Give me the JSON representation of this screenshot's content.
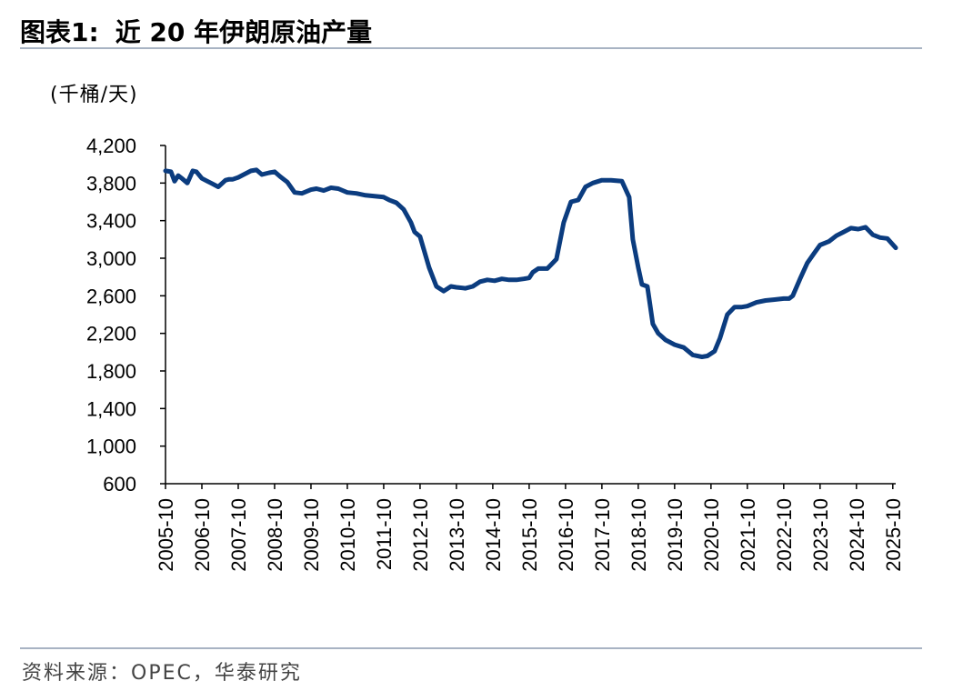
{
  "header": {
    "figure_no": "图表1:",
    "title": "近 20 年伊朗原油产量"
  },
  "unit_label": "(千桶/天)",
  "source": "资料来源：OPEC，华泰研究",
  "colors": {
    "line": "#0b3c7f",
    "rule": "#a8b3c3",
    "axis": "#000000"
  },
  "chart_data": {
    "type": "line",
    "title": "近 20 年伊朗原油产量",
    "xlabel": "",
    "ylabel": "(千桶/天)",
    "ylim": [
      600,
      4200
    ],
    "yticks": [
      600,
      1000,
      1400,
      1800,
      2200,
      2600,
      3000,
      3400,
      3800,
      4200
    ],
    "ytick_labels": [
      "600",
      "1,000",
      "1,400",
      "1,800",
      "2,200",
      "2,600",
      "3,000",
      "3,400",
      "3,800",
      "4,200"
    ],
    "x_labels": [
      "2005-10",
      "2006-10",
      "2007-10",
      "2008-10",
      "2009-10",
      "2010-10",
      "2011-10",
      "2012-10",
      "2013-10",
      "2014-10",
      "2015-10",
      "2016-10",
      "2017-10",
      "2018-10",
      "2019-10",
      "2020-10",
      "2021-10",
      "2022-10",
      "2023-10",
      "2024-10",
      "2025-10"
    ],
    "grid": false,
    "legend": "none",
    "series": [
      {
        "x": [
          2005.75,
          2005.9,
          2006.0,
          2006.1,
          2006.2,
          2006.35,
          2006.5,
          2006.6,
          2006.75,
          2006.9,
          2007.0,
          2007.2,
          2007.4,
          2007.5,
          2007.6,
          2007.75,
          2007.9,
          2008.1,
          2008.25,
          2008.4,
          2008.6,
          2008.75,
          2008.9,
          2009.1,
          2009.3,
          2009.5,
          2009.75,
          2009.9,
          2010.1,
          2010.3,
          2010.5,
          2010.75,
          2011.0,
          2011.25,
          2011.5,
          2011.75,
          2011.9,
          2012.1,
          2012.3,
          2012.5,
          2012.6,
          2012.75,
          2013.0,
          2013.2,
          2013.4,
          2013.6,
          2013.75,
          2014.0,
          2014.2,
          2014.4,
          2014.6,
          2014.8,
          2015.0,
          2015.2,
          2015.4,
          2015.6,
          2015.75,
          2015.85,
          2016.0,
          2016.25,
          2016.5,
          2016.7,
          2016.9,
          2017.1,
          2017.3,
          2017.5,
          2017.75,
          2018.0,
          2018.3,
          2018.5,
          2018.6,
          2018.75,
          2018.85,
          2019.0,
          2019.15,
          2019.3,
          2019.5,
          2019.75,
          2020.0,
          2020.25,
          2020.5,
          2020.65,
          2020.85,
          2021.0,
          2021.2,
          2021.4,
          2021.6,
          2021.75,
          2022.0,
          2022.25,
          2022.5,
          2022.75,
          2022.9,
          2023.0,
          2023.2,
          2023.4,
          2023.6,
          2023.75,
          2024.0,
          2024.2,
          2024.4,
          2024.6,
          2024.8,
          2025.0,
          2025.2,
          2025.4,
          2025.6,
          2025.83
        ],
        "values": [
          3930,
          3920,
          3820,
          3880,
          3850,
          3800,
          3930,
          3920,
          3850,
          3820,
          3800,
          3760,
          3830,
          3840,
          3840,
          3860,
          3890,
          3930,
          3940,
          3890,
          3910,
          3920,
          3870,
          3810,
          3700,
          3690,
          3730,
          3740,
          3720,
          3750,
          3740,
          3700,
          3690,
          3670,
          3660,
          3650,
          3620,
          3590,
          3520,
          3380,
          3280,
          3230,
          2900,
          2700,
          2650,
          2700,
          2690,
          2680,
          2700,
          2750,
          2770,
          2760,
          2780,
          2770,
          2770,
          2780,
          2790,
          2850,
          2890,
          2890,
          2990,
          3380,
          3600,
          3620,
          3760,
          3800,
          3830,
          3830,
          3820,
          3650,
          3200,
          2900,
          2720,
          2700,
          2300,
          2200,
          2130,
          2080,
          2050,
          1970,
          1950,
          1960,
          2010,
          2150,
          2400,
          2480,
          2480,
          2490,
          2530,
          2550,
          2560,
          2570,
          2570,
          2600,
          2780,
          2950,
          3060,
          3140,
          3180,
          3240,
          3280,
          3320,
          3310,
          3330,
          3250,
          3220,
          3210,
          3110
        ]
      }
    ]
  }
}
